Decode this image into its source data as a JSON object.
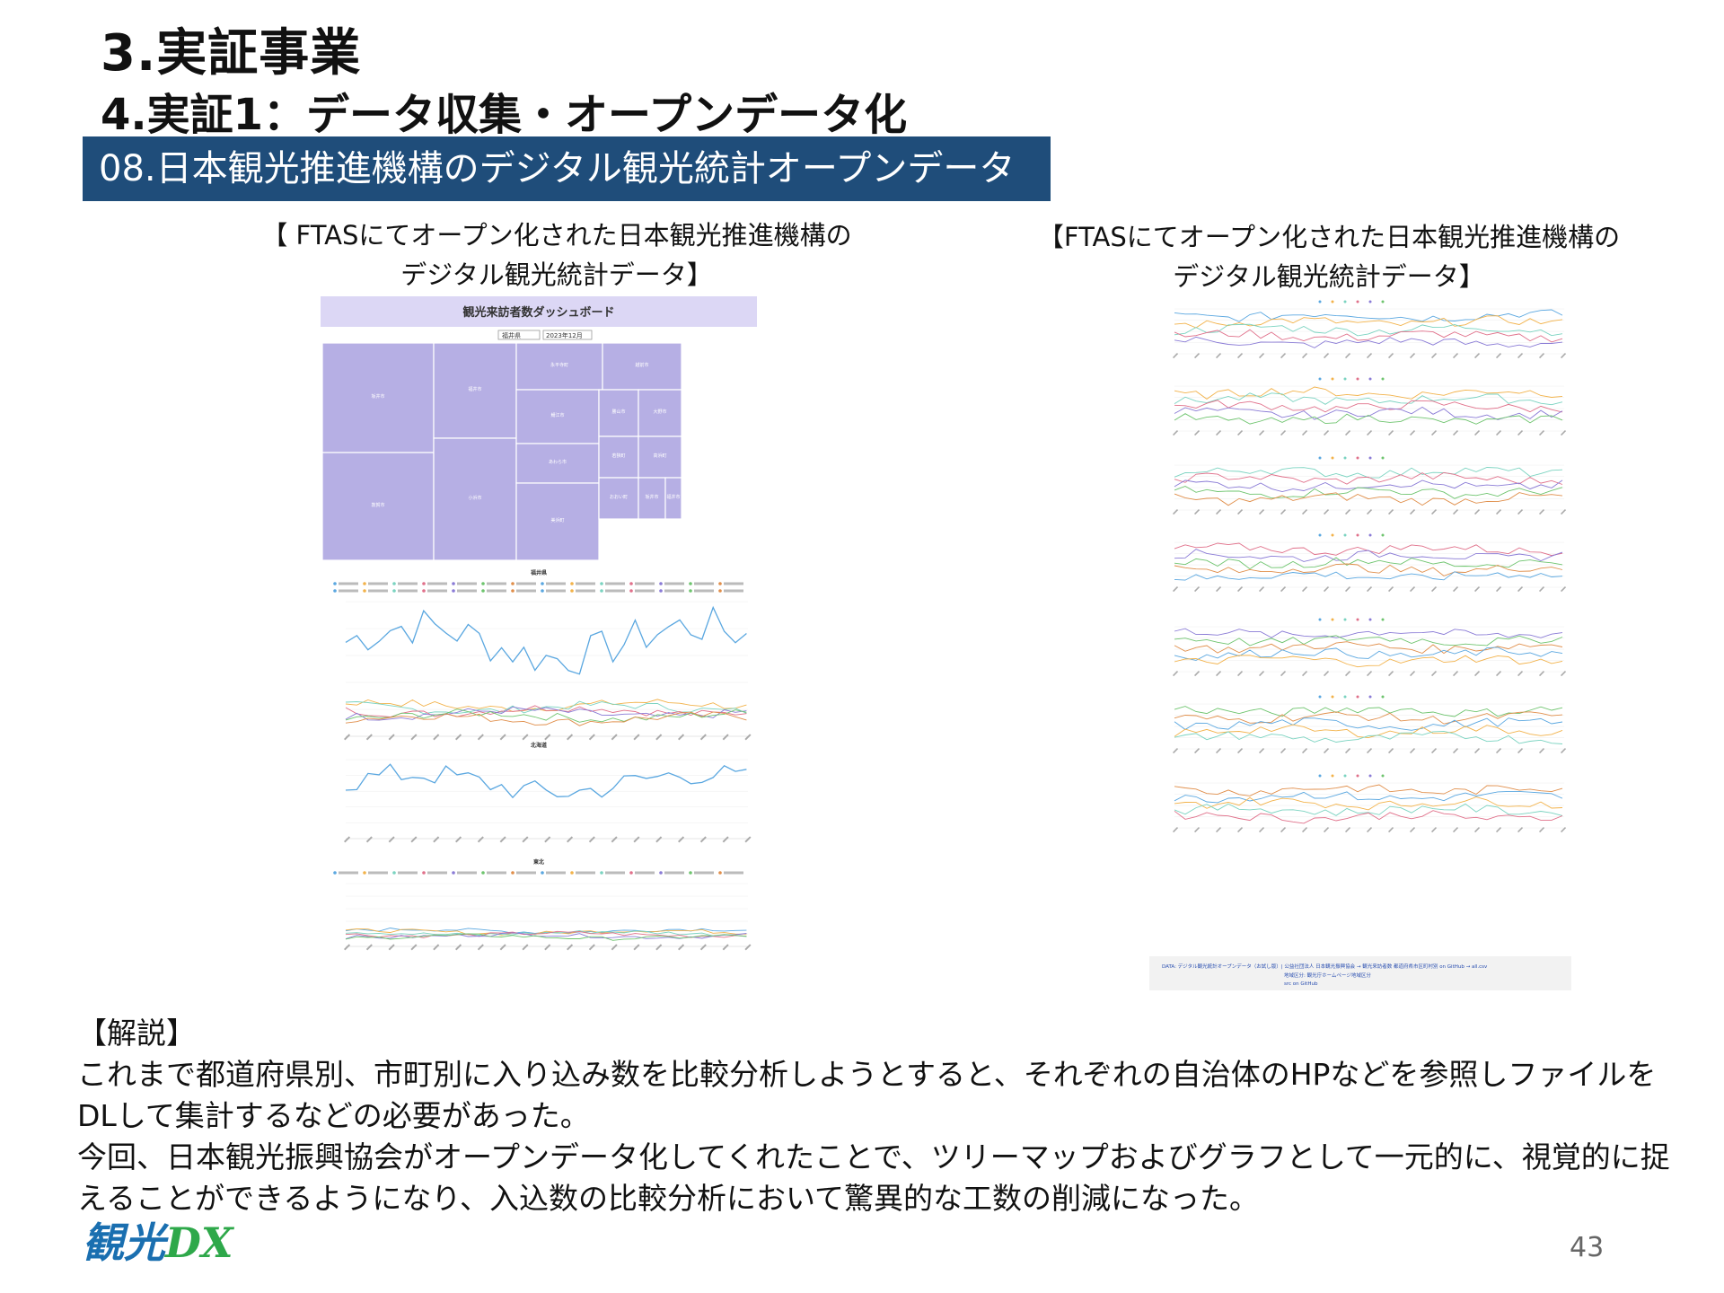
{
  "header": {
    "section": "3.実証事業",
    "subsection": "4.実証1：データ収集・オープンデータ化",
    "banner": "08.日本観光推進機構のデジタル観光統計オープンデータ"
  },
  "captions": {
    "left_line1": "【 FTASにてオープン化された日本観光推進機構の",
    "left_line2": "デジタル観光統計データ】",
    "right_line1": "【FTASにてオープン化された日本観光推進機構の",
    "right_line2": "デジタル観光統計データ】"
  },
  "dashboard": {
    "title": "観光来訪者数ダッシュボード",
    "select_pref": "福井県",
    "select_month": "2023年12月",
    "treemap_cells": [
      "坂井市",
      "福井市",
      "永平寺町",
      "越前市",
      "敦賀市",
      "小浜市",
      "鯖江市",
      "勝山市",
      "大野市",
      "あわら市",
      "若狭町",
      "高浜町",
      "美浜町",
      "おおい町"
    ],
    "chart1_title": "福井県",
    "chart2_title": "北海道",
    "chart3_title": "東北",
    "footer_lines": [
      "DATA: デジタル観光統計オープンデータ（お試し版）| 公益社団法人 日本観光振興協会 → 観光来訪者数 都道府県市区町村別 on GitHub → all.csv",
      "地域区分: 観光庁ホームページ地域区分",
      "src on GitHub"
    ]
  },
  "explanation": {
    "heading": "【解説】",
    "para1": "これまで都道府県別、市町別に入り込み数を比較分析しようとすると、それぞれの自治体のHPなどを参照しファイルをDLして集計するなどの必要があった。",
    "para2": "今回、日本観光振興協会がオープンデータ化してくれたことで、ツリーマップおよびグラフとして一元的に、視覚的に捉えることができるようになり、入込数の比較分析において驚異的な工数の削減になった。"
  },
  "footer": {
    "logo_text_a": "観光",
    "logo_text_b": "DX",
    "page_number": "43"
  },
  "colors": {
    "banner": "#1f4d7a",
    "treemap": "#b6afe4",
    "series": [
      "#5aa7e0",
      "#f2b24a",
      "#7ad3c0",
      "#e0708a",
      "#8a7bd6",
      "#6ec46e",
      "#e08e4a"
    ]
  }
}
